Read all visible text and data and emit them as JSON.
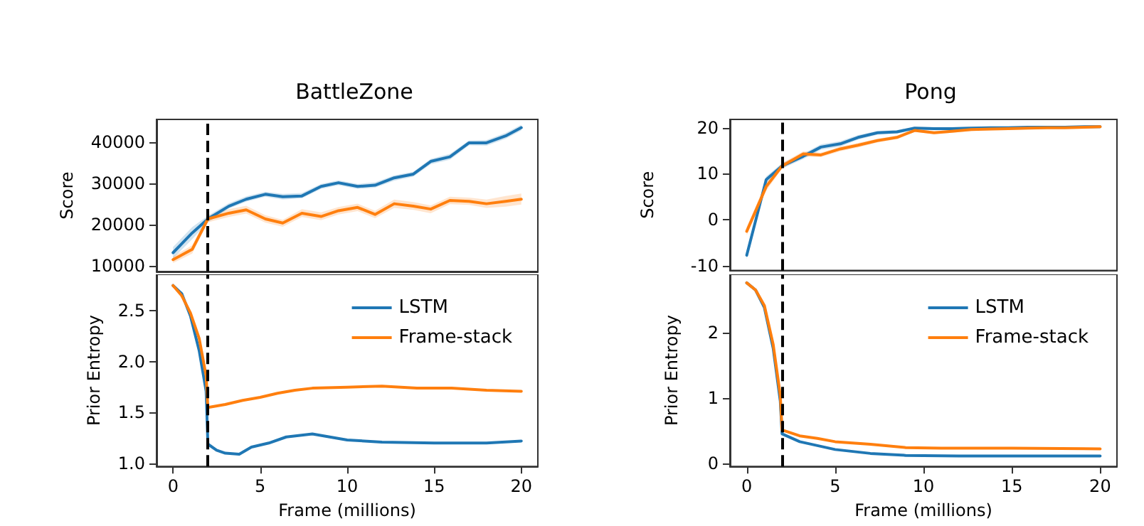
{
  "chart_data": [
    {
      "type": "line",
      "title": "BattleZone",
      "ylabel": "Score",
      "xlim": [
        -0.95,
        20.95
      ],
      "ylim": [
        8600,
        45600
      ],
      "yticks": [
        10000,
        20000,
        30000,
        40000
      ],
      "tick_labels": "y",
      "grid": false,
      "legend": false,
      "ref_lines": [
        {
          "axis": "x",
          "value": 2,
          "color": "#000000",
          "line_style": "dashed"
        }
      ],
      "series": [
        {
          "color": "#1f77b4",
          "x": [
            0,
            1.1,
            2,
            3.2,
            4.2,
            5.3,
            6.3,
            7.4,
            8.5,
            9.5,
            10.6,
            11.6,
            12.7,
            13.8,
            14.8,
            15.9,
            17,
            18,
            19.1,
            20
          ],
          "values": [
            13200,
            18000,
            21400,
            24500,
            26200,
            27400,
            26800,
            27000,
            29300,
            30200,
            29300,
            29600,
            31400,
            32300,
            35400,
            36500,
            39900,
            39900,
            41600,
            43600
          ],
          "lower": [
            11800,
            16500,
            20600,
            23900,
            25600,
            26800,
            26100,
            26400,
            28700,
            29600,
            28700,
            29000,
            30700,
            31700,
            34700,
            35800,
            39300,
            39200,
            40900,
            42900
          ],
          "upper": [
            14600,
            19400,
            22200,
            25200,
            26900,
            28000,
            27500,
            27700,
            29900,
            30800,
            29900,
            30300,
            32000,
            32900,
            36000,
            37200,
            40500,
            40600,
            42300,
            44300
          ]
        },
        {
          "color": "#ff7f0e",
          "x": [
            0,
            1.1,
            2,
            3.2,
            4.2,
            5.3,
            6.3,
            7.4,
            8.5,
            9.5,
            10.6,
            11.6,
            12.7,
            13.8,
            14.8,
            15.9,
            17,
            18,
            19.1,
            20
          ],
          "values": [
            11500,
            14000,
            21400,
            22800,
            23600,
            21400,
            20400,
            22800,
            22000,
            23400,
            24200,
            22500,
            25100,
            24500,
            23800,
            25900,
            25700,
            25100,
            25700,
            26200
          ],
          "lower": [
            10700,
            13000,
            20600,
            21900,
            22700,
            20500,
            19500,
            21900,
            21100,
            22500,
            23300,
            21600,
            24100,
            23600,
            22800,
            25000,
            24800,
            24100,
            24400,
            24900
          ],
          "upper": [
            12300,
            15000,
            22200,
            23800,
            24600,
            22300,
            21200,
            23800,
            23000,
            24300,
            25100,
            23400,
            26100,
            25500,
            24700,
            26800,
            26600,
            26100,
            27000,
            27600
          ]
        }
      ]
    },
    {
      "type": "line",
      "title": "Pong",
      "ylabel": "Score",
      "xlim": [
        -0.95,
        20.95
      ],
      "ylim": [
        -11,
        21.8
      ],
      "yticks": [
        -10,
        0,
        10,
        20
      ],
      "tick_labels": "y",
      "grid": false,
      "legend": false,
      "ref_lines": [
        {
          "axis": "x",
          "value": 2,
          "color": "#000000",
          "line_style": "dashed"
        }
      ],
      "series": [
        {
          "color": "#1f77b4",
          "x": [
            0,
            1.1,
            2,
            3.2,
            4.2,
            5.3,
            6.3,
            7.4,
            8.5,
            9.5,
            10.6,
            11.6,
            12.7,
            13.8,
            14.8,
            15.9,
            17,
            18,
            19.1,
            20
          ],
          "values": [
            -7.7,
            8.7,
            11.7,
            13.8,
            15.8,
            16.5,
            17.9,
            18.9,
            19.1,
            19.9,
            19.8,
            19.8,
            19.9,
            20,
            20,
            20.1,
            20.1,
            20.1,
            20.2,
            20.2
          ],
          "lower": [
            -8.6,
            8.0,
            11.1,
            13.2,
            15.2,
            15.9,
            17.4,
            18.5,
            18.7,
            19.6,
            19.5,
            19.5,
            19.6,
            19.7,
            19.7,
            19.8,
            19.8,
            19.8,
            19.9,
            19.9
          ],
          "upper": [
            -6.8,
            9.4,
            12.3,
            14.4,
            16.4,
            17.1,
            18.4,
            19.3,
            19.5,
            20.2,
            20.1,
            20.1,
            20.2,
            20.3,
            20.3,
            20.4,
            20.4,
            20.4,
            20.5,
            20.5
          ]
        },
        {
          "color": "#ff7f0e",
          "x": [
            0,
            1.1,
            2,
            3.2,
            4.2,
            5.3,
            6.3,
            7.4,
            8.5,
            9.5,
            10.6,
            11.6,
            12.7,
            13.8,
            14.8,
            15.9,
            17,
            18,
            19.1,
            20
          ],
          "values": [
            -2.5,
            7.2,
            11.7,
            14.3,
            14.1,
            15.4,
            16.2,
            17.2,
            17.9,
            19.4,
            18.9,
            19.2,
            19.6,
            19.7,
            19.8,
            19.9,
            20,
            20,
            20.1,
            20.2
          ],
          "lower": [
            -3.4,
            6.3,
            11.1,
            13.7,
            13.6,
            14.9,
            15.7,
            16.8,
            17.5,
            19.1,
            18.6,
            18.9,
            19.3,
            19.4,
            19.5,
            19.6,
            19.7,
            19.7,
            19.8,
            19.9
          ],
          "upper": [
            -1.6,
            8.1,
            12.3,
            14.9,
            14.6,
            15.9,
            16.7,
            17.6,
            18.3,
            19.7,
            19.2,
            19.5,
            19.9,
            20,
            20.1,
            20.2,
            20.3,
            20.3,
            20.4,
            20.5
          ]
        }
      ]
    },
    {
      "type": "line",
      "xlabel": "Frame (millions)",
      "ylabel": "Prior Entropy",
      "xlim": [
        -0.95,
        20.95
      ],
      "ylim": [
        0.97,
        2.86
      ],
      "xticks": [
        0,
        5,
        10,
        15,
        20
      ],
      "yticks": [
        {
          "value": 1,
          "label": "1.0"
        },
        {
          "value": 1.5,
          "label": "1.5"
        },
        {
          "value": 2,
          "label": "2.0"
        },
        {
          "value": 2.5,
          "label": "2.5"
        }
      ],
      "grid": false,
      "legend": "top right",
      "ref_lines": [
        {
          "axis": "x",
          "value": 2,
          "color": "#000000",
          "line_style": "dashed"
        }
      ],
      "series": [
        {
          "name": "LSTM",
          "color": "#1f77b4",
          "x": [
            0,
            0.5,
            1,
            1.5,
            1.9,
            2,
            2.5,
            3,
            3.8,
            4.5,
            5.5,
            6.5,
            8,
            9,
            10,
            12,
            15,
            18,
            20
          ],
          "values": [
            2.75,
            2.67,
            2.45,
            2.11,
            1.71,
            1.19,
            1.13,
            1.1,
            1.09,
            1.16,
            1.2,
            1.26,
            1.29,
            1.26,
            1.23,
            1.21,
            1.2,
            1.2,
            1.22
          ]
        },
        {
          "name": "Frame-stack",
          "color": "#ff7f0e",
          "x": [
            0,
            0.5,
            1,
            1.5,
            1.9,
            2,
            3,
            4,
            5,
            6,
            7,
            8,
            10,
            12,
            14,
            16,
            18,
            20
          ],
          "values": [
            2.75,
            2.65,
            2.48,
            2.23,
            1.86,
            1.55,
            1.58,
            1.62,
            1.65,
            1.69,
            1.72,
            1.74,
            1.75,
            1.76,
            1.74,
            1.74,
            1.72,
            1.71
          ]
        }
      ]
    },
    {
      "type": "line",
      "xlabel": "Frame (millions)",
      "ylabel": "Prior Entropy",
      "xlim": [
        -0.95,
        20.95
      ],
      "ylim": [
        -0.05,
        2.9
      ],
      "xticks": [
        0,
        5,
        10,
        15,
        20
      ],
      "yticks": [
        0,
        1,
        2
      ],
      "grid": false,
      "legend": "top right",
      "ref_lines": [
        {
          "axis": "x",
          "value": 2,
          "color": "#000000",
          "line_style": "dashed"
        }
      ],
      "series": [
        {
          "name": "LSTM",
          "color": "#1f77b4",
          "x": [
            0,
            0.5,
            1,
            1.5,
            1.9,
            2,
            3,
            4,
            5,
            7,
            9,
            12,
            16,
            20
          ],
          "values": [
            2.77,
            2.66,
            2.39,
            1.76,
            0.95,
            0.45,
            0.33,
            0.27,
            0.21,
            0.15,
            0.12,
            0.11,
            0.11,
            0.11
          ]
        },
        {
          "name": "Frame-stack",
          "color": "#ff7f0e",
          "x": [
            0,
            0.5,
            1,
            1.5,
            1.9,
            2,
            3,
            4,
            5,
            7,
            9,
            11,
            15,
            20
          ],
          "values": [
            2.77,
            2.66,
            2.42,
            1.82,
            1.04,
            0.51,
            0.42,
            0.38,
            0.33,
            0.29,
            0.24,
            0.23,
            0.23,
            0.22
          ]
        }
      ]
    }
  ]
}
